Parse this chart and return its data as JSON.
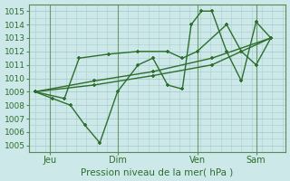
{
  "title": "Pression niveau de la mer( hPa )",
  "background_color": "#cce8e8",
  "grid_color": "#aacccc",
  "line_color": "#2d6e2d",
  "ylim": [
    1004.5,
    1015.5
  ],
  "yticks": [
    1005,
    1006,
    1007,
    1008,
    1009,
    1010,
    1011,
    1012,
    1013,
    1014,
    1015
  ],
  "series": [
    {
      "x": [
        0.0,
        0.6,
        1.2,
        1.7,
        2.2,
        2.8,
        3.5,
        4.0,
        4.5,
        5.0,
        5.3,
        5.65,
        6.0,
        6.5,
        7.0,
        7.5,
        8.0
      ],
      "y": [
        1009.0,
        1008.5,
        1008.0,
        1006.5,
        1005.2,
        1009.0,
        1011.0,
        1011.5,
        1009.5,
        1009.2,
        1014.0,
        1015.0,
        1015.0,
        1012.0,
        1009.8,
        1014.2,
        1013.0
      ]
    },
    {
      "x": [
        0.0,
        1.0,
        1.5,
        2.5,
        3.5,
        4.5,
        5.0,
        5.5,
        6.5,
        7.0,
        7.5,
        8.0
      ],
      "y": [
        1009.0,
        1008.5,
        1011.5,
        1011.8,
        1012.0,
        1012.0,
        1011.5,
        1012.0,
        1014.0,
        1012.0,
        1011.0,
        1013.0
      ]
    },
    {
      "x": [
        0.0,
        2.0,
        4.0,
        6.0,
        8.0
      ],
      "y": [
        1009.0,
        1009.8,
        1010.5,
        1011.5,
        1013.0
      ]
    },
    {
      "x": [
        0.0,
        2.0,
        4.0,
        6.0,
        8.0
      ],
      "y": [
        1009.0,
        1009.5,
        1010.2,
        1011.0,
        1013.0
      ]
    }
  ],
  "xlim": [
    -0.2,
    8.5
  ],
  "xtick_positions": [
    0.5,
    2.8,
    5.5,
    7.5
  ],
  "xtick_labels": [
    "Jeu",
    "Dim",
    "Ven",
    "Sam"
  ],
  "vline_positions": [
    0.5,
    2.8,
    5.5,
    7.5
  ]
}
